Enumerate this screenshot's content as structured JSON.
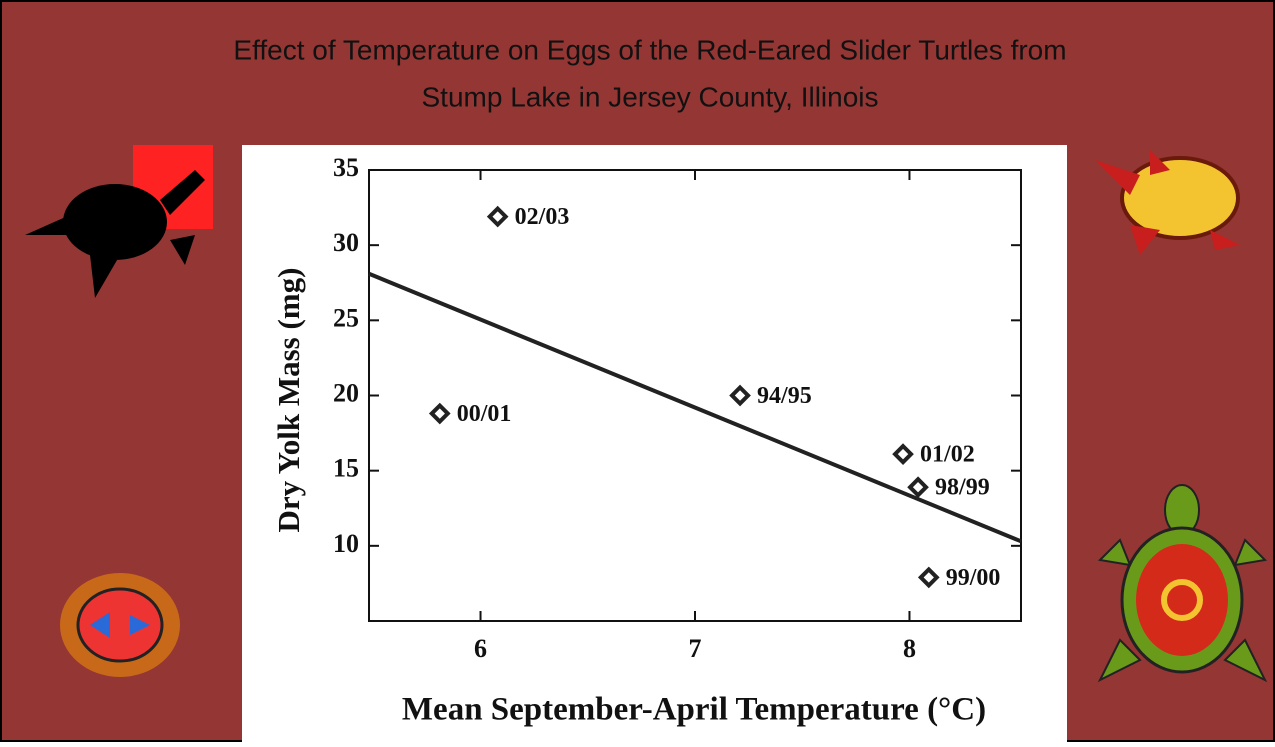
{
  "chart_data": {
    "type": "scatter",
    "title": [
      "Effect of Temperature on Eggs of the Red-Eared Slider Turtles from",
      "Stump Lake in Jersey County, Illinois"
    ],
    "x_label": "Mean September-April Temperature (°C)",
    "y_label": "Dry Yolk Mass (mg)",
    "x": [
      6.08,
      5.81,
      7.21,
      7.97,
      8.04,
      8.09
    ],
    "values": [
      31.9,
      18.8,
      20.0,
      16.1,
      13.9,
      7.9
    ],
    "point_labels": [
      "02/03",
      "00/01",
      "94/95",
      "01/02",
      "98/99",
      "99/00"
    ],
    "trendline": {
      "x": [
        5.48,
        8.52
      ],
      "values": [
        28.1,
        10.3
      ]
    },
    "color": "#222222",
    "xlim": [
      5.48,
      8.52
    ],
    "ylim": [
      5,
      35
    ],
    "xticks": [
      6,
      7,
      8
    ],
    "yticks": [
      10,
      15,
      20,
      25,
      30,
      35
    ]
  }
}
